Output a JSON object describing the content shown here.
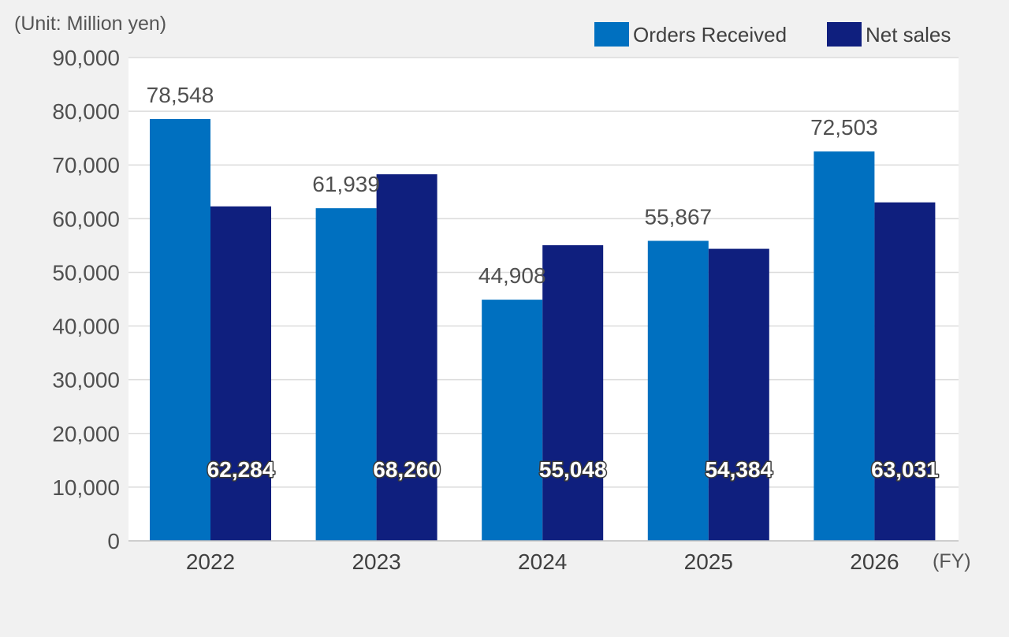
{
  "chart_data": {
    "type": "bar",
    "unit_label": "(Unit: Million yen)",
    "x_suffix": "(FY)",
    "categories": [
      "2022",
      "2023",
      "2024",
      "2025",
      "2026"
    ],
    "series": [
      {
        "name": "Orders Received",
        "color": "#0070c0",
        "values": [
          78548,
          61939,
          44908,
          55867,
          72503
        ],
        "labels": [
          "78,548",
          "61,939",
          "44,908",
          "55,867",
          "72,503"
        ]
      },
      {
        "name": "Net sales",
        "color": "#0f1f7e",
        "values": [
          62284,
          68260,
          55048,
          54384,
          63031
        ],
        "labels": [
          "62,284",
          "68,260",
          "55,048",
          "54,384",
          "63,031"
        ]
      }
    ],
    "yticks": [
      0,
      10000,
      20000,
      30000,
      40000,
      50000,
      60000,
      70000,
      80000,
      90000
    ],
    "ytick_labels": [
      "0",
      "10,000",
      "20,000",
      "30,000",
      "40,000",
      "50,000",
      "60,000",
      "70,000",
      "80,000",
      "90,000"
    ],
    "ylim": [
      0,
      90000
    ],
    "grid": true,
    "legend_position": "top-right"
  }
}
